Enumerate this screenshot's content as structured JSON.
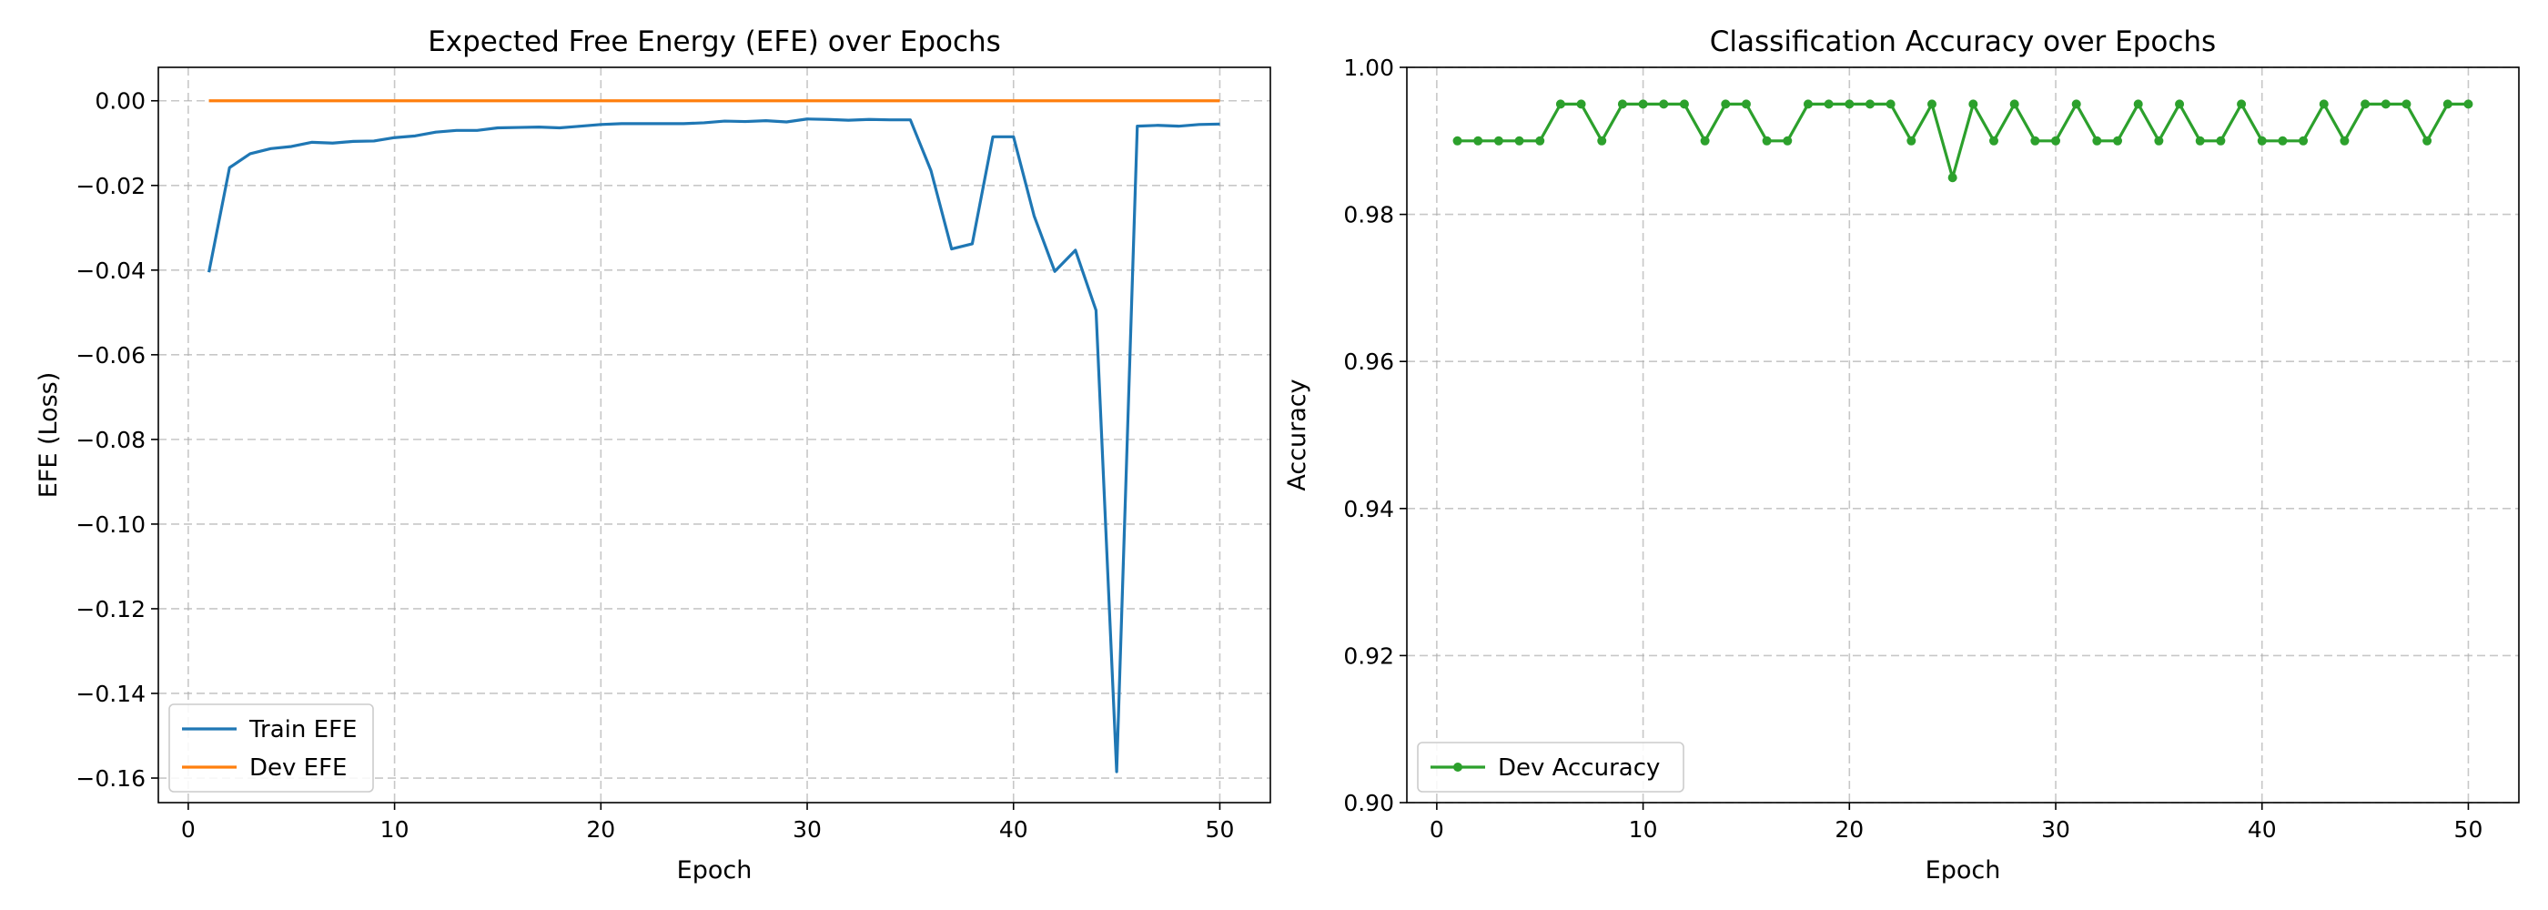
{
  "chart_data": [
    {
      "type": "line",
      "title": "Expected Free Energy (EFE) over Epochs",
      "xlabel": "Epoch",
      "ylabel": "EFE (Loss)",
      "xlim": [
        -1.45,
        52.45
      ],
      "ylim": [
        -0.1658,
        0.0079
      ],
      "xticks": [
        0,
        10,
        20,
        30,
        40,
        50
      ],
      "xtick_labels": [
        "0",
        "10",
        "20",
        "30",
        "40",
        "50"
      ],
      "yticks": [
        0.0,
        -0.02,
        -0.04,
        -0.06,
        -0.08,
        -0.1,
        -0.12,
        -0.14,
        -0.16
      ],
      "ytick_labels": [
        "0.00",
        "−0.02",
        "−0.04",
        "−0.06",
        "−0.08",
        "−0.10",
        "−0.12",
        "−0.14",
        "−0.16"
      ],
      "grid": true,
      "legend_position": "lower-left",
      "x": [
        1,
        2,
        3,
        4,
        5,
        6,
        7,
        8,
        9,
        10,
        11,
        12,
        13,
        14,
        15,
        16,
        17,
        18,
        19,
        20,
        21,
        22,
        23,
        24,
        25,
        26,
        27,
        28,
        29,
        30,
        31,
        32,
        33,
        34,
        35,
        36,
        37,
        38,
        39,
        40,
        41,
        42,
        43,
        44,
        45,
        46,
        47,
        48,
        49,
        50
      ],
      "series": [
        {
          "name": "Train EFE",
          "color": "#1f77b4",
          "marker": "none",
          "values": [
            -0.0405,
            -0.0158,
            -0.0125,
            -0.0113,
            -0.0108,
            -0.0098,
            -0.01,
            -0.0096,
            -0.0095,
            -0.0087,
            -0.0083,
            -0.0074,
            -0.007,
            -0.007,
            -0.0064,
            -0.0063,
            -0.0062,
            -0.0064,
            -0.006,
            -0.0056,
            -0.0054,
            -0.0054,
            -0.0054,
            -0.0054,
            -0.0052,
            -0.0048,
            -0.0049,
            -0.0047,
            -0.005,
            -0.0043,
            -0.0044,
            -0.0046,
            -0.0044,
            -0.0045,
            -0.0045,
            -0.0165,
            -0.035,
            -0.0338,
            -0.0085,
            -0.0085,
            -0.0272,
            -0.0403,
            -0.0353,
            -0.0495,
            -0.1585,
            -0.006,
            -0.0058,
            -0.006,
            -0.0056,
            -0.0055
          ]
        },
        {
          "name": "Dev EFE",
          "color": "#ff7f0e",
          "marker": "none",
          "values": [
            0,
            0,
            0,
            0,
            0,
            0,
            0,
            0,
            0,
            0,
            0,
            0,
            0,
            0,
            0,
            0,
            0,
            0,
            0,
            0,
            0,
            0,
            0,
            0,
            0,
            0,
            0,
            0,
            0,
            0,
            0,
            0,
            0,
            0,
            0,
            0,
            0,
            0,
            0,
            0,
            0,
            0,
            0,
            0,
            0,
            0,
            0,
            0,
            0,
            0
          ]
        }
      ]
    },
    {
      "type": "line",
      "title": "Classification Accuracy over Epochs",
      "xlabel": "Epoch",
      "ylabel": "Accuracy",
      "xlim": [
        -1.45,
        52.45
      ],
      "ylim": [
        0.9,
        1.0
      ],
      "xticks": [
        0,
        10,
        20,
        30,
        40,
        50
      ],
      "xtick_labels": [
        "0",
        "10",
        "20",
        "30",
        "40",
        "50"
      ],
      "yticks": [
        0.9,
        0.92,
        0.94,
        0.96,
        0.98,
        1.0
      ],
      "ytick_labels": [
        "0.90",
        "0.92",
        "0.94",
        "0.96",
        "0.98",
        "1.00"
      ],
      "grid": true,
      "legend_position": "lower-left",
      "x": [
        1,
        2,
        3,
        4,
        5,
        6,
        7,
        8,
        9,
        10,
        11,
        12,
        13,
        14,
        15,
        16,
        17,
        18,
        19,
        20,
        21,
        22,
        23,
        24,
        25,
        26,
        27,
        28,
        29,
        30,
        31,
        32,
        33,
        34,
        35,
        36,
        37,
        38,
        39,
        40,
        41,
        42,
        43,
        44,
        45,
        46,
        47,
        48,
        49,
        50
      ],
      "series": [
        {
          "name": "Dev Accuracy",
          "color": "#2ca02c",
          "marker": "circle",
          "values": [
            0.99,
            0.99,
            0.99,
            0.99,
            0.99,
            0.995,
            0.995,
            0.99,
            0.995,
            0.995,
            0.995,
            0.995,
            0.99,
            0.995,
            0.995,
            0.99,
            0.99,
            0.995,
            0.995,
            0.995,
            0.995,
            0.995,
            0.99,
            0.995,
            0.985,
            0.995,
            0.99,
            0.995,
            0.99,
            0.99,
            0.995,
            0.99,
            0.99,
            0.995,
            0.99,
            0.995,
            0.99,
            0.99,
            0.995,
            0.99,
            0.99,
            0.99,
            0.995,
            0.99,
            0.995,
            0.995,
            0.995,
            0.99,
            0.995,
            0.995
          ]
        }
      ]
    }
  ]
}
